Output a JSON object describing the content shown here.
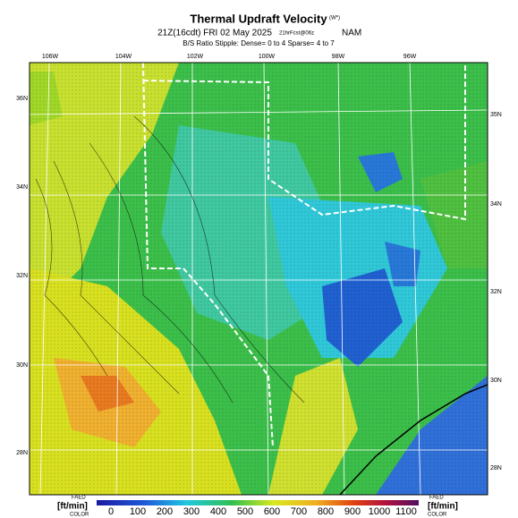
{
  "header": {
    "title": "Thermal Updraft Velocity",
    "title_suffix": "(W*)",
    "valid_time": "21Z(16cdt) FRI 02 May 2025",
    "forecast": "21hrFcst@06z",
    "model": "NAM",
    "stipple_note": "B/S Ratio Stipple: Dense= 0 to 4 Sparse= 4 to 7"
  },
  "map": {
    "top_labels": [
      "106W",
      "104W",
      "102W",
      "100W",
      "98W",
      "96W"
    ],
    "left_labels": [
      "36N",
      "34N",
      "32N",
      "30N",
      "28N"
    ],
    "right_labels": [
      "35N",
      "34N",
      "32N",
      "30N",
      "28N"
    ]
  },
  "colorbar": {
    "left_top": "FAED",
    "unit_left": "[ft/min]",
    "left_bottom": "COLOR",
    "right_top": "FAED",
    "unit_right": "[ft/min]",
    "right_bottom": "COLOR",
    "ticks": [
      0,
      100,
      200,
      300,
      400,
      500,
      600,
      700,
      800,
      900,
      1000,
      1100
    ]
  }
}
